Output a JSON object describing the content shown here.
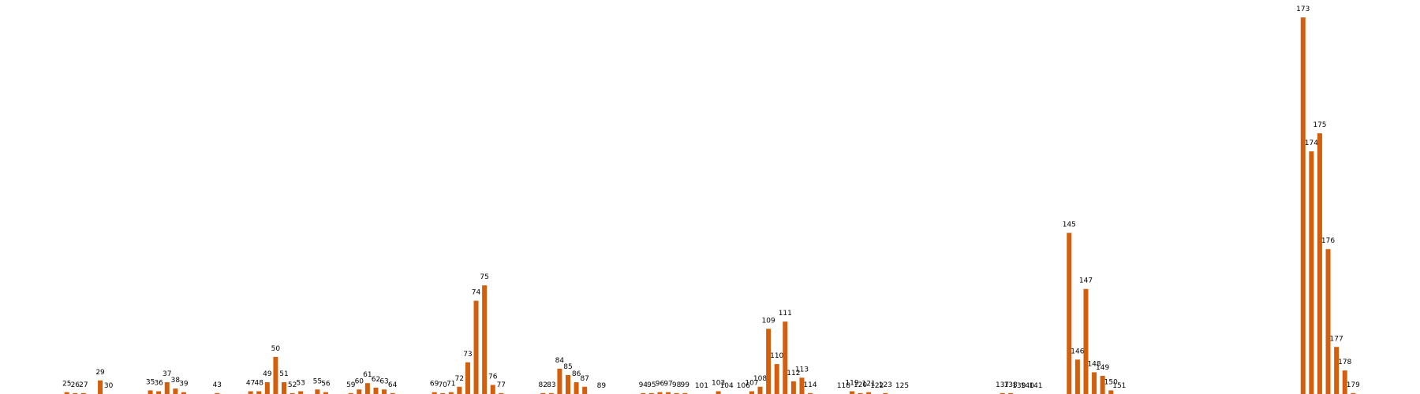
{
  "chart_data": {
    "type": "bar",
    "color": "#d35f0c",
    "x": [
      25,
      26,
      27,
      29,
      30,
      35,
      36,
      37,
      38,
      39,
      43,
      47,
      48,
      49,
      50,
      51,
      52,
      53,
      55,
      56,
      59,
      60,
      61,
      62,
      63,
      64,
      69,
      70,
      71,
      72,
      73,
      74,
      75,
      76,
      77,
      82,
      83,
      84,
      85,
      86,
      87,
      89,
      94,
      95,
      96,
      97,
      98,
      99,
      101,
      103,
      104,
      106,
      107,
      108,
      109,
      110,
      111,
      112,
      113,
      114,
      118,
      119,
      120,
      121,
      122,
      123,
      125,
      137,
      138,
      139,
      140,
      141,
      145,
      146,
      147,
      148,
      149,
      150,
      151,
      173,
      174,
      175,
      176,
      177,
      178,
      179
    ],
    "values": [
      2,
      1,
      1,
      15,
      0,
      4,
      3,
      13,
      6,
      2,
      1,
      3,
      3,
      13,
      41,
      13,
      1,
      3,
      5,
      2,
      1,
      5,
      12,
      7,
      5,
      1,
      2,
      1,
      2,
      8,
      35,
      103,
      120,
      10,
      1,
      1,
      1,
      28,
      21,
      13,
      8,
      0,
      1,
      1,
      2,
      2,
      1,
      1,
      0,
      3,
      0,
      0,
      3,
      8,
      72,
      33,
      80,
      14,
      18,
      1,
      0,
      3,
      1,
      2,
      0,
      1,
      0,
      1,
      1,
      0,
      0,
      0,
      178,
      38,
      116,
      24,
      20,
      4,
      0,
      416,
      268,
      288,
      160,
      52,
      26,
      1
    ],
    "xlim": [
      17,
      187
    ],
    "ylim": [
      0,
      430
    ]
  }
}
